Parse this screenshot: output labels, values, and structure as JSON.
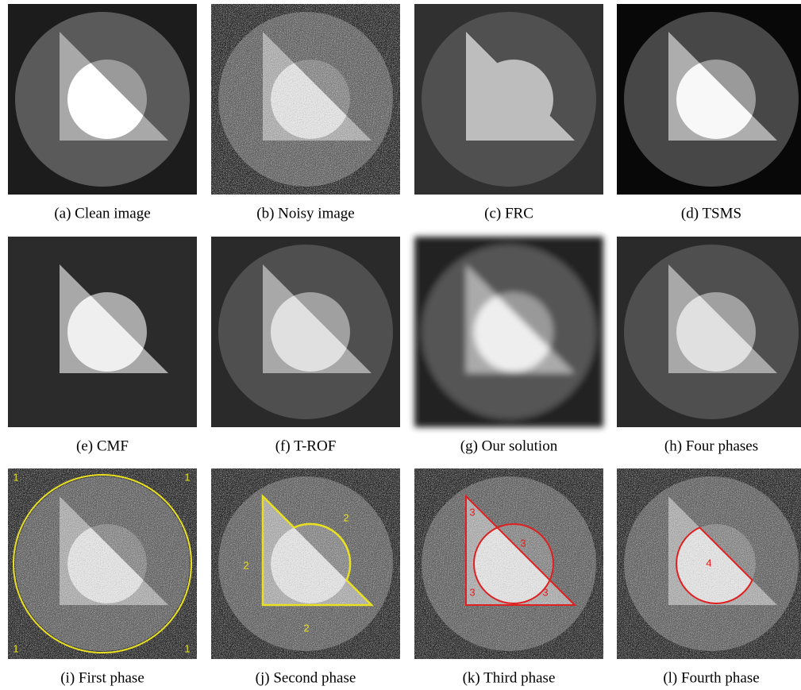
{
  "figure": {
    "panels": [
      {
        "caption": "(a)  Clean image"
      },
      {
        "caption": "(b)  Noisy image"
      },
      {
        "caption": "(c)  FRC"
      },
      {
        "caption": "(d)  TSMS"
      },
      {
        "caption": "(e)  CMF"
      },
      {
        "caption": "(f)  T-ROF"
      },
      {
        "caption": "(g)  Our solution"
      },
      {
        "caption": "(h)  Four phases"
      },
      {
        "caption": "(i)  First phase",
        "labels": [
          "1",
          "1",
          "1",
          "1"
        ]
      },
      {
        "caption": "(j)  Second phase",
        "labels": [
          "2",
          "2",
          "2"
        ]
      },
      {
        "caption": "(k)  Third phase",
        "labels": [
          "3",
          "3",
          "3",
          "3"
        ]
      },
      {
        "caption": "(l)  Fourth phase",
        "labels": [
          "4"
        ]
      }
    ]
  }
}
